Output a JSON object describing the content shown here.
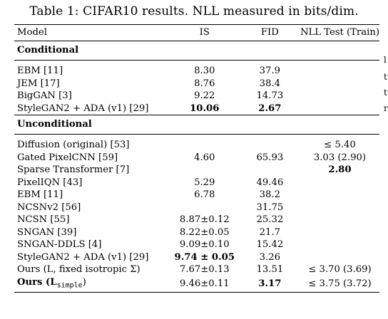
{
  "caption": "Table 1: CIFAR10 results. NLL measured in bits/dim.",
  "header": {
    "model": "Model",
    "is": "IS",
    "fid": "FID",
    "nll": "NLL Test (Train)"
  },
  "sections": {
    "conditional": "Conditional",
    "unconditional": "Unconditional"
  },
  "conditional_rows": [
    {
      "model": "EBM [11]",
      "is": "8.30",
      "fid": "37.9",
      "nll": ""
    },
    {
      "model": "JEM [17]",
      "is": "8.76",
      "fid": "38.4",
      "nll": ""
    },
    {
      "model": "BigGAN [3]",
      "is": "9.22",
      "fid": "14.73",
      "nll": ""
    },
    {
      "model": "StyleGAN2 + ADA (v1) [29]",
      "is": "10.06",
      "fid": "2.67",
      "nll": ""
    }
  ],
  "unconditional_rows": [
    {
      "model": "Diffusion (original) [53]",
      "is": "",
      "fid": "",
      "nll": "≤ 5.40"
    },
    {
      "model": "Gated PixelCNN [59]",
      "is": "4.60",
      "fid": "65.93",
      "nll": "3.03 (2.90)"
    },
    {
      "model": "Sparse Transformer [7]",
      "is": "",
      "fid": "",
      "nll": "2.80"
    },
    {
      "model": "PixelIQN [43]",
      "is": "5.29",
      "fid": "49.46",
      "nll": ""
    },
    {
      "model": "EBM [11]",
      "is": "6.78",
      "fid": "38.2",
      "nll": ""
    },
    {
      "model": "NCSNv2 [56]",
      "is": "",
      "fid": "31.75",
      "nll": ""
    },
    {
      "model": "NCSN [55]",
      "is": "8.87±0.12",
      "fid": "25.32",
      "nll": ""
    },
    {
      "model": "SNGAN [39]",
      "is": "8.22±0.05",
      "fid": "21.7",
      "nll": ""
    },
    {
      "model": "SNGAN-DDLS [4]",
      "is": "9.09±0.10",
      "fid": "15.42",
      "nll": ""
    },
    {
      "model": "StyleGAN2 + ADA (v1) [29]",
      "is": "9.74 ± 0.05",
      "fid": "3.26",
      "nll": ""
    },
    {
      "model": "Ours (L, fixed isotropic Σ)",
      "is": "7.67±0.13",
      "fid": "13.51",
      "nll": "≤ 3.70 (3.69)"
    },
    {
      "model": "Ours (L",
      "model_sub": "simple",
      "model_tail": ")",
      "is": "9.46±0.11",
      "fid": "3.17",
      "nll": "≤ 3.75 (3.72)"
    }
  ],
  "edge_fragments": [
    "l",
    "t",
    "t",
    "r"
  ]
}
